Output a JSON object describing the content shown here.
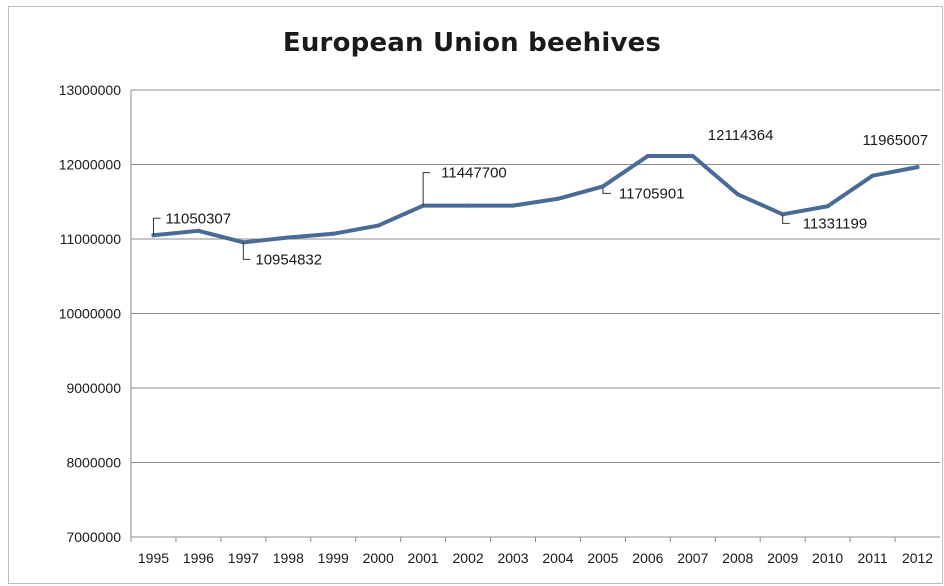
{
  "chart_data": {
    "type": "line",
    "title": "European Union beehives",
    "xlabel": "",
    "ylabel": "",
    "categories": [
      "1995",
      "1996",
      "1997",
      "1998",
      "1999",
      "2000",
      "2001",
      "2002",
      "2003",
      "2004",
      "2005",
      "2006",
      "2007",
      "2008",
      "2009",
      "2010",
      "2011",
      "2012"
    ],
    "series": [
      {
        "values": [
          11050307,
          11110000,
          10954832,
          11020000,
          11070000,
          11180000,
          11447700,
          11447700,
          11447700,
          11540000,
          11705901,
          12114364,
          12114364,
          11600000,
          11331199,
          11440000,
          11850000,
          11965007
        ]
      }
    ],
    "ylim": [
      7000000,
      13000000
    ],
    "yticks": [
      "13000000",
      "12000000",
      "11000000",
      "10000000",
      "9000000",
      "8000000",
      "7000000"
    ],
    "grid": "horizontal",
    "line_color": "#4a6b95",
    "data_labels": [
      {
        "index": 0,
        "text": "11050307"
      },
      {
        "index": 2,
        "text": "10954832"
      },
      {
        "index": 6,
        "text": "11447700"
      },
      {
        "index": 10,
        "text": "11705901"
      },
      {
        "index": 12,
        "text": "12114364"
      },
      {
        "index": 14,
        "text": "11331199"
      },
      {
        "index": 17,
        "text": "11965007"
      }
    ]
  }
}
